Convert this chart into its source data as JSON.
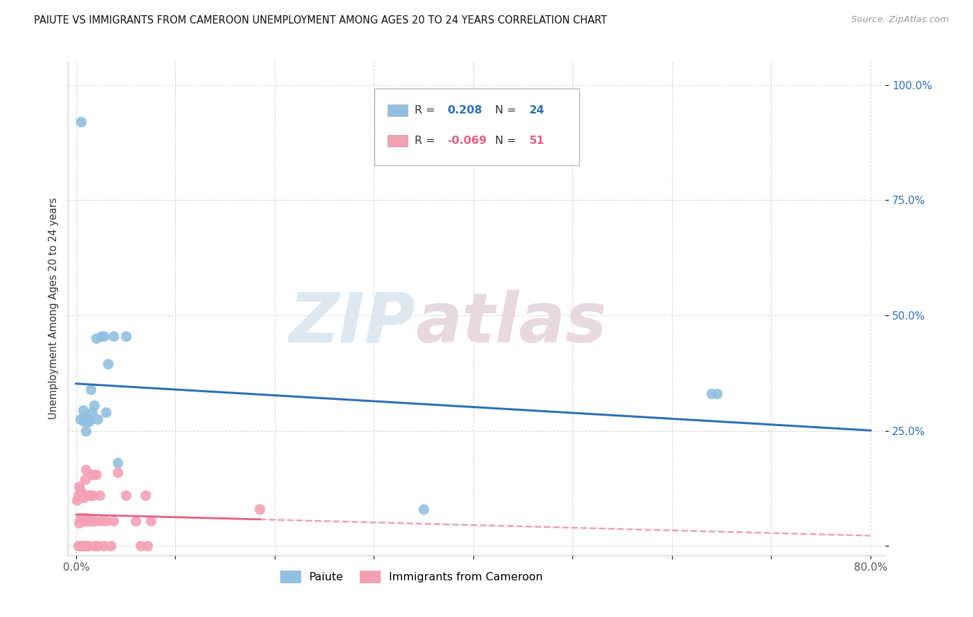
{
  "title": "PAIUTE VS IMMIGRANTS FROM CAMEROON UNEMPLOYMENT AMONG AGES 20 TO 24 YEARS CORRELATION CHART",
  "source": "Source: ZipAtlas.com",
  "ylabel": "Unemployment Among Ages 20 to 24 years",
  "xlim": [
    0.0,
    0.8
  ],
  "ylim": [
    0.0,
    1.0
  ],
  "xtick_vals": [
    0.0,
    0.1,
    0.2,
    0.3,
    0.4,
    0.5,
    0.6,
    0.7,
    0.8
  ],
  "xtick_labels": [
    "0.0%",
    "",
    "",
    "",
    "",
    "",
    "",
    "",
    "80.0%"
  ],
  "ytick_vals": [
    0.0,
    0.25,
    0.5,
    0.75,
    1.0
  ],
  "ytick_labels": [
    "",
    "25.0%",
    "50.0%",
    "75.0%",
    "100.0%"
  ],
  "paiute_color": "#92C0E0",
  "cameroon_color": "#F4A0B5",
  "paiute_line_color": "#2E6FB5",
  "cameroon_line_color": "#E06080",
  "legend_paiute_R": "0.208",
  "legend_paiute_N": "24",
  "legend_cameroon_R": "-0.069",
  "legend_cameroon_N": "51",
  "watermark_zip": "ZIP",
  "watermark_atlas": "atlas",
  "paiute_x": [
    0.004,
    0.005,
    0.007,
    0.008,
    0.009,
    0.01,
    0.011,
    0.012,
    0.013,
    0.015,
    0.016,
    0.018,
    0.02,
    0.022,
    0.025,
    0.028,
    0.03,
    0.032,
    0.038,
    0.042,
    0.05,
    0.35,
    0.64,
    0.645
  ],
  "paiute_y": [
    0.275,
    0.92,
    0.295,
    0.27,
    0.28,
    0.25,
    0.27,
    0.275,
    0.27,
    0.34,
    0.29,
    0.305,
    0.45,
    0.275,
    0.455,
    0.455,
    0.29,
    0.395,
    0.455,
    0.18,
    0.455,
    0.08,
    0.33,
    0.33
  ],
  "cameroon_x": [
    0.001,
    0.002,
    0.002,
    0.003,
    0.003,
    0.004,
    0.004,
    0.005,
    0.005,
    0.005,
    0.006,
    0.006,
    0.006,
    0.007,
    0.007,
    0.008,
    0.008,
    0.008,
    0.009,
    0.009,
    0.01,
    0.01,
    0.01,
    0.011,
    0.011,
    0.012,
    0.013,
    0.013,
    0.014,
    0.015,
    0.016,
    0.016,
    0.017,
    0.018,
    0.019,
    0.02,
    0.022,
    0.024,
    0.025,
    0.028,
    0.03,
    0.035,
    0.038,
    0.042,
    0.05,
    0.06,
    0.065,
    0.07,
    0.072,
    0.075,
    0.185
  ],
  "cameroon_y": [
    0.1,
    0.0,
    0.11,
    0.05,
    0.13,
    0.06,
    0.12,
    0.0,
    0.06,
    0.11,
    0.0,
    0.06,
    0.11,
    0.0,
    0.06,
    0.0,
    0.055,
    0.105,
    0.055,
    0.145,
    0.0,
    0.055,
    0.165,
    0.06,
    0.11,
    0.0,
    0.055,
    0.11,
    0.055,
    0.11,
    0.055,
    0.155,
    0.11,
    0.0,
    0.055,
    0.155,
    0.0,
    0.11,
    0.055,
    0.0,
    0.055,
    0.0,
    0.055,
    0.16,
    0.11,
    0.055,
    0.0,
    0.11,
    0.0,
    0.055,
    0.08
  ]
}
